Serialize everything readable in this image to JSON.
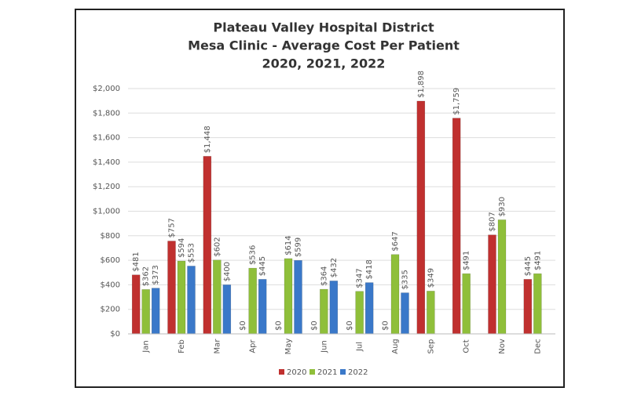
{
  "chart_data": {
    "type": "bar",
    "title": [
      "Plateau Valley Hospital District",
      "Mesa Clinic - Average Cost Per Patient",
      "2020, 2021, 2022"
    ],
    "categories": [
      "Jan",
      "Feb",
      "Mar",
      "Apr",
      "May",
      "Jun",
      "Jul",
      "Aug",
      "Sep",
      "Oct",
      "Nov",
      "Dec"
    ],
    "series": [
      {
        "name": "2020",
        "color": "#c0302f",
        "values": [
          481,
          757,
          1448,
          0,
          0,
          0,
          0,
          0,
          1898,
          1759,
          807,
          445
        ],
        "value_labels": [
          "$481",
          "$757",
          "$1,448",
          "$0",
          "$0",
          "$0",
          "$0",
          "$0",
          "$1,898",
          "$1,759",
          "$807",
          "$445"
        ]
      },
      {
        "name": "2021",
        "color": "#8fbf3a",
        "values": [
          362,
          594,
          602,
          536,
          614,
          364,
          347,
          647,
          349,
          491,
          930,
          491
        ],
        "value_labels": [
          "$362",
          "$594",
          "$602",
          "$536",
          "$614",
          "$364",
          "$347",
          "$647",
          "$349",
          "$491",
          "$930",
          "$491"
        ]
      },
      {
        "name": "2022",
        "color": "#3a78c9",
        "values": [
          373,
          553,
          400,
          445,
          599,
          432,
          418,
          335,
          null,
          null,
          null,
          null
        ],
        "value_labels": [
          "$373",
          "$553",
          "$400",
          "$445",
          "$599",
          "$432",
          "$418",
          "$335",
          null,
          null,
          null,
          null
        ]
      }
    ],
    "ylim": [
      0,
      2000
    ],
    "yticks": [
      {
        "value": 0,
        "label": "$0"
      },
      {
        "value": 200,
        "label": "$200"
      },
      {
        "value": 400,
        "label": "$400"
      },
      {
        "value": 600,
        "label": "$600"
      },
      {
        "value": 800,
        "label": "$800"
      },
      {
        "value": 1000,
        "label": "$1,000"
      },
      {
        "value": 1200,
        "label": "$1,200"
      },
      {
        "value": 1400,
        "label": "$1,400"
      },
      {
        "value": 1600,
        "label": "$1,600"
      },
      {
        "value": 1800,
        "label": "$1,800"
      },
      {
        "value": 2000,
        "label": "$2,000"
      }
    ],
    "grid": true
  }
}
